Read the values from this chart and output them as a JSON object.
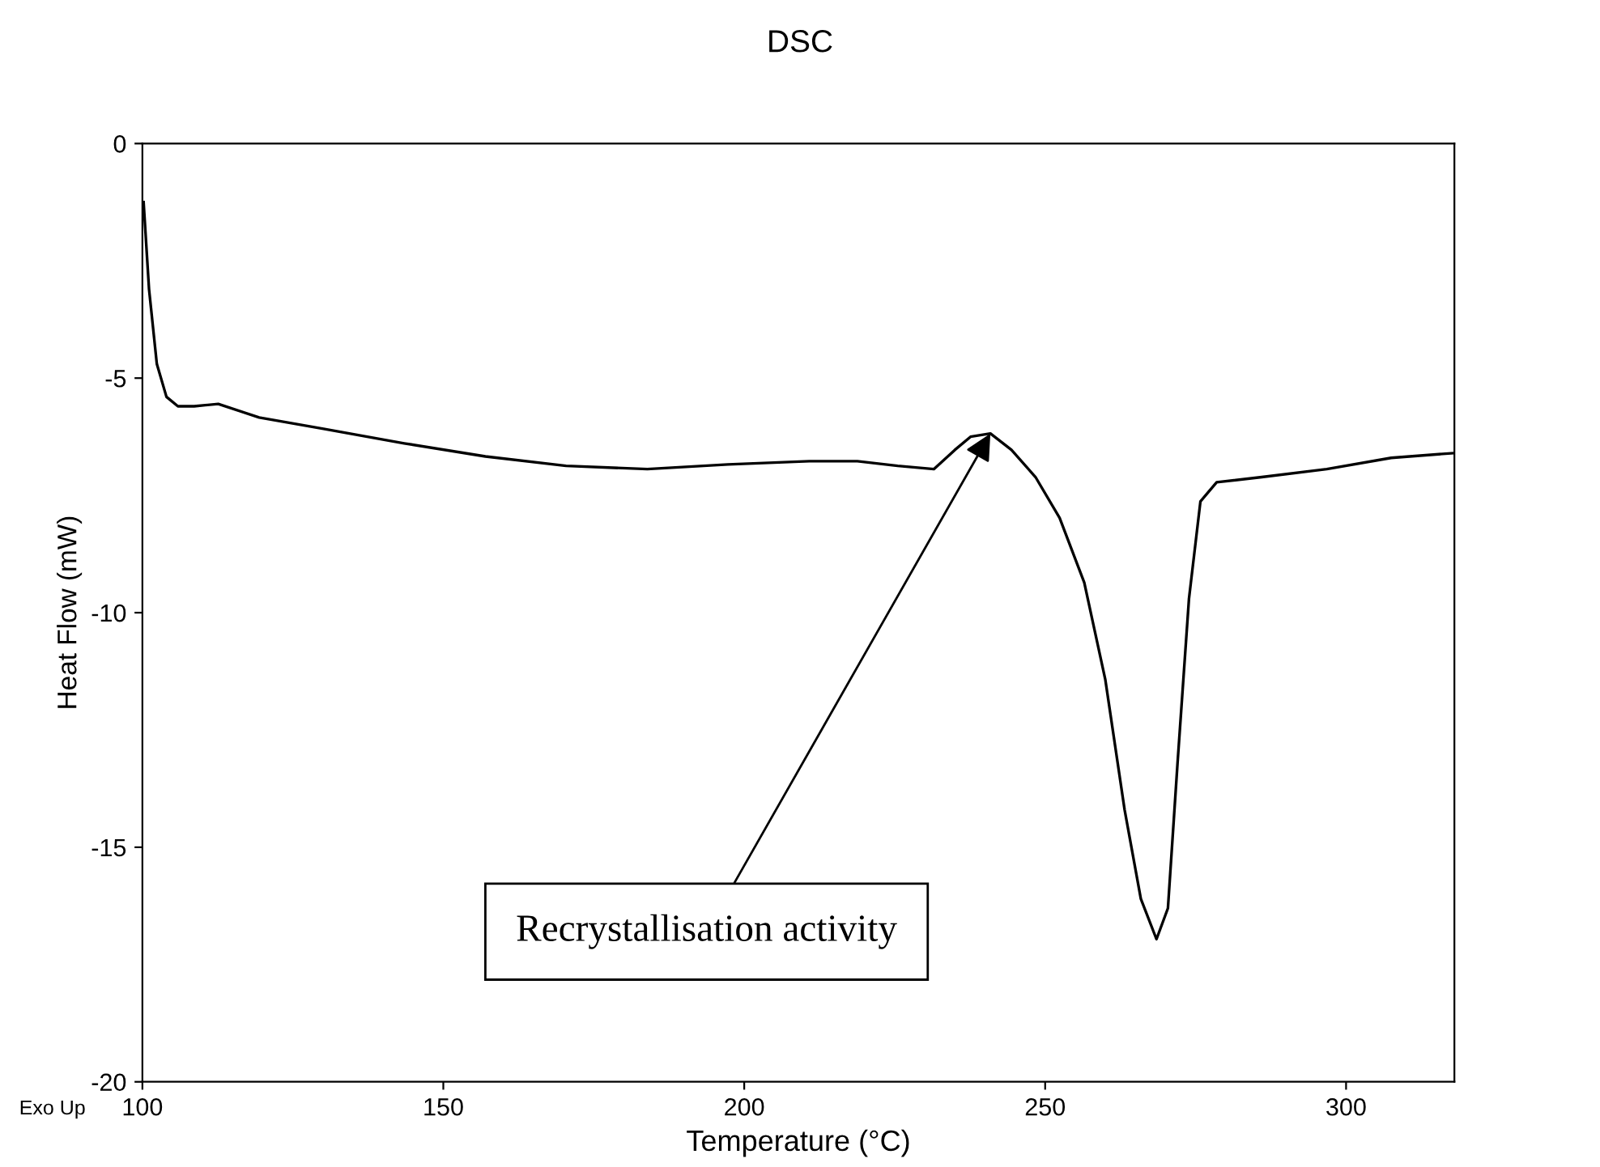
{
  "chart_data": {
    "type": "line",
    "title": "DSC",
    "xlabel": "Temperature (°C)",
    "ylabel": "Heat Flow (mW)",
    "x": [
      100.2,
      101.1,
      102.4,
      104,
      105.9,
      108.6,
      112.6,
      119.4,
      130.1,
      143.5,
      157,
      170.4,
      183.9,
      197.3,
      210.8,
      218.8,
      225.5,
      231.5,
      235,
      237.6,
      240.9,
      244.4,
      248.4,
      252.4,
      256.5,
      260,
      263.2,
      265.9,
      268.5,
      270.4,
      272,
      273.9,
      275.8,
      278.5,
      286,
      296.8,
      307.5,
      317.7
    ],
    "series": [
      {
        "color": "#000000",
        "values": [
          -1.25,
          -3.1,
          -4.7,
          -5.4,
          -5.6,
          -5.6,
          -5.55,
          -5.84,
          -6.08,
          -6.39,
          -6.67,
          -6.87,
          -6.94,
          -6.84,
          -6.77,
          -6.77,
          -6.87,
          -6.94,
          -6.53,
          -6.25,
          -6.18,
          -6.53,
          -7.11,
          -7.98,
          -9.36,
          -11.43,
          -14.2,
          -16.1,
          -16.96,
          -16.3,
          -13.2,
          -9.7,
          -7.63,
          -7.22,
          -7.11,
          -6.94,
          -6.7,
          -6.6
        ]
      }
    ],
    "xlim": [
      100,
      318
    ],
    "xticks": [
      100,
      150,
      200,
      250,
      300
    ],
    "ylim": [
      -20,
      0
    ],
    "yticks": [
      -20,
      -15,
      -10,
      -5,
      0
    ],
    "grid": false,
    "legend": false,
    "marker": "none",
    "line_style": "solid",
    "annotations": [
      {
        "text": "Recrystallisation activity",
        "x": 240.9,
        "y": -6.18
      },
      "Exo Up"
    ]
  }
}
